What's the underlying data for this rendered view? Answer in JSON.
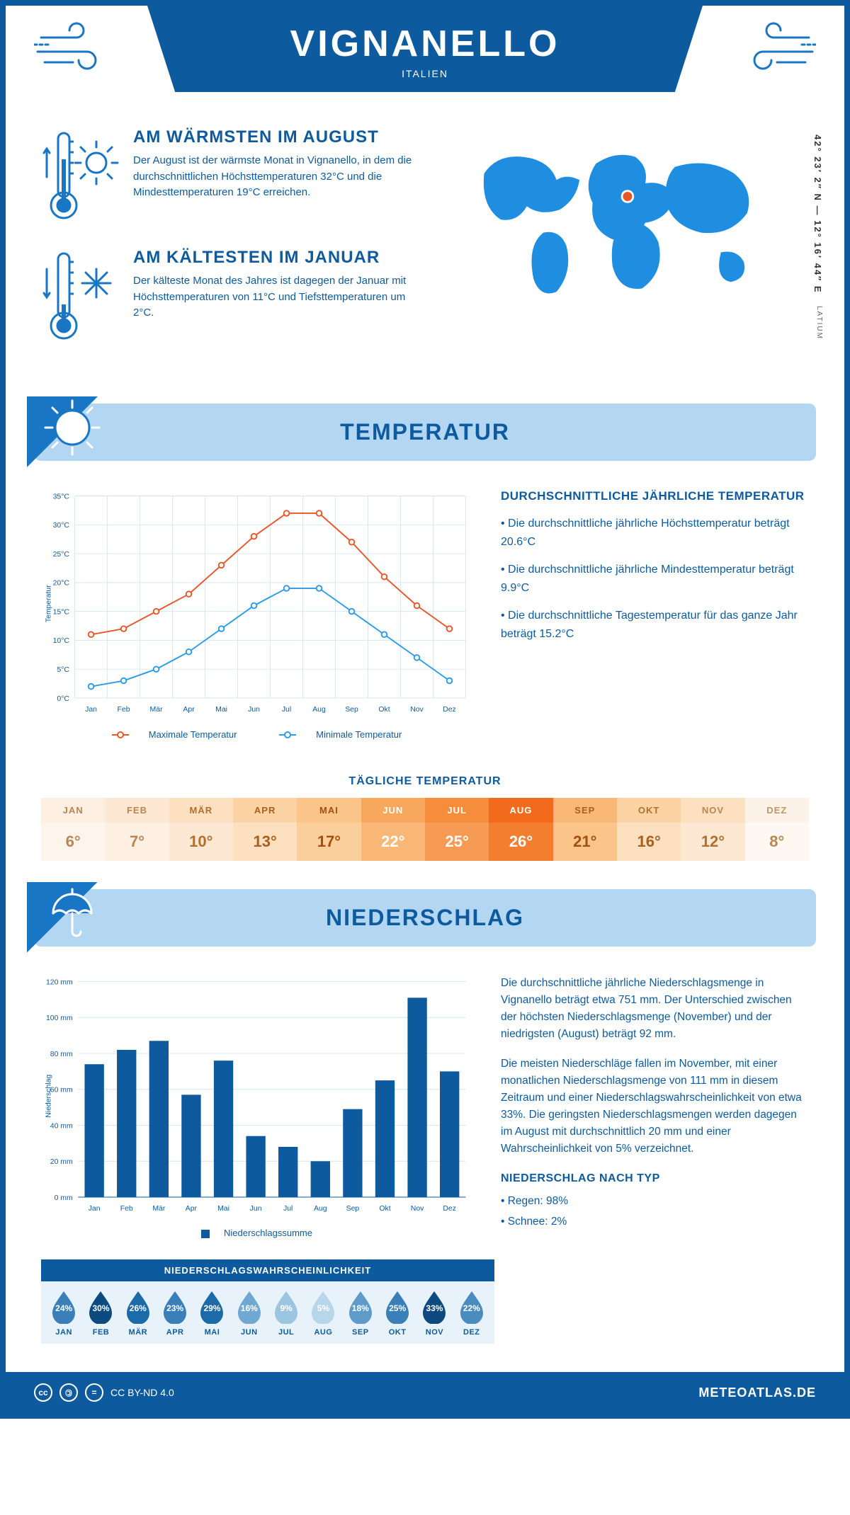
{
  "header": {
    "title": "VIGNANELLO",
    "subtitle": "ITALIEN"
  },
  "location": {
    "coords": "42° 23′ 2″ N — 12° 16′ 44″ E",
    "region": "LATIUM",
    "marker_color": "#e8562a",
    "continent_color": "#1f8de0"
  },
  "facts": {
    "warm": {
      "title": "AM WÄRMSTEN IM AUGUST",
      "body": "Der August ist der wärmste Monat in Vignanello, in dem die durchschnittlichen Höchsttemperaturen 32°C und die Mindesttemperaturen 19°C erreichen."
    },
    "cold": {
      "title": "AM KÄLTESTEN IM JANUAR",
      "body": "Der kälteste Monat des Jahres ist dagegen der Januar mit Höchsttemperaturen von 11°C und Tiefsttemperaturen um 2°C."
    }
  },
  "temp_section": {
    "title": "TEMPERATUR",
    "chart": {
      "type": "line",
      "categories": [
        "Jan",
        "Feb",
        "Mär",
        "Apr",
        "Mai",
        "Jun",
        "Jul",
        "Aug",
        "Sep",
        "Okt",
        "Nov",
        "Dez"
      ],
      "series": [
        {
          "name": "Maximale Temperatur",
          "color": "#e8562a",
          "values": [
            11,
            12,
            15,
            18,
            23,
            28,
            32,
            32,
            27,
            21,
            16,
            12
          ]
        },
        {
          "name": "Minimale Temperatur",
          "color": "#2b9be8",
          "values": [
            2,
            3,
            5,
            8,
            12,
            16,
            19,
            19,
            15,
            11,
            7,
            3
          ]
        }
      ],
      "ylabel": "Temperatur",
      "ylim": [
        0,
        35
      ],
      "ytick_step": 5,
      "grid_color": "#d4e6f5",
      "background_color": "#ffffff",
      "marker_fill": "#ffffff",
      "marker_radius": 4,
      "line_width": 2,
      "label_fontsize": 11
    },
    "legend_max": "Maximale Temperatur",
    "legend_min": "Minimale Temperatur",
    "text_title": "DURCHSCHNITTLICHE JÄHRLICHE TEMPERATUR",
    "bullets": [
      "• Die durchschnittliche jährliche Höchsttemperatur beträgt 20.6°C",
      "• Die durchschnittliche jährliche Mindesttemperatur beträgt 9.9°C",
      "• Die durchschnittliche Tagestemperatur für das ganze Jahr beträgt 15.2°C"
    ]
  },
  "daily": {
    "title": "TÄGLICHE TEMPERATUR",
    "months": [
      "JAN",
      "FEB",
      "MÄR",
      "APR",
      "MAI",
      "JUN",
      "JUL",
      "AUG",
      "SEP",
      "OKT",
      "NOV",
      "DEZ"
    ],
    "values": [
      "6°",
      "7°",
      "10°",
      "13°",
      "17°",
      "22°",
      "25°",
      "26°",
      "21°",
      "16°",
      "12°",
      "8°"
    ],
    "header_colors": [
      "#fdefe1",
      "#fde9d3",
      "#fde0bf",
      "#fcd3a3",
      "#fbc589",
      "#f7a85c",
      "#f58d3d",
      "#f26a1b",
      "#f9b878",
      "#fcd3a3",
      "#fde0bf",
      "#fdf2e8"
    ],
    "value_colors": [
      "#fdf5ec",
      "#fdefe1",
      "#fde9d3",
      "#fde0bf",
      "#fbcf9c",
      "#f9b878",
      "#f79a53",
      "#f47e30",
      "#fbc589",
      "#fde0bf",
      "#fde9d3",
      "#fef8f2"
    ],
    "header_text_colors": [
      "#b88650",
      "#b88650",
      "#b07030",
      "#a86020",
      "#a05010",
      "#ffffff",
      "#ffffff",
      "#ffffff",
      "#a86020",
      "#b07030",
      "#b88650",
      "#c09668"
    ],
    "value_text_colors": [
      "#b88650",
      "#b88650",
      "#b07030",
      "#a86020",
      "#a05010",
      "#ffffff",
      "#ffffff",
      "#ffffff",
      "#a05010",
      "#a86020",
      "#b07030",
      "#b88650"
    ]
  },
  "precip_section": {
    "title": "NIEDERSCHLAG",
    "chart": {
      "type": "bar",
      "categories": [
        "Jan",
        "Feb",
        "Mär",
        "Apr",
        "Mai",
        "Jun",
        "Jul",
        "Aug",
        "Sep",
        "Okt",
        "Nov",
        "Dez"
      ],
      "values": [
        74,
        82,
        87,
        57,
        76,
        34,
        28,
        20,
        49,
        65,
        111,
        70
      ],
      "bar_color": "#0d5a9e",
      "ylabel": "Niederschlag",
      "ylim": [
        0,
        120
      ],
      "ytick_step": 20,
      "grid_color": "#d4e6f5",
      "background_color": "#ffffff",
      "bar_width": 0.6,
      "legend": "Niederschlagssumme",
      "label_fontsize": 11
    },
    "text": [
      "Die durchschnittliche jährliche Niederschlagsmenge in Vignanello beträgt etwa 751 mm. Der Unterschied zwischen der höchsten Niederschlagsmenge (November) und der niedrigsten (August) beträgt 92 mm.",
      "Die meisten Niederschläge fallen im November, mit einer monatlichen Niederschlagsmenge von 111 mm in diesem Zeitraum und einer Niederschlagswahrscheinlichkeit von etwa 33%. Die geringsten Niederschlagsmengen werden dagegen im August mit durchschnittlich 20 mm und einer Wahrscheinlichkeit von 5% verzeichnet."
    ],
    "type_title": "NIEDERSCHLAG NACH TYP",
    "type_bullets": [
      "• Regen: 98%",
      "• Schnee: 2%"
    ]
  },
  "probability": {
    "title": "NIEDERSCHLAGSWAHRSCHEINLICHKEIT",
    "months": [
      "JAN",
      "FEB",
      "MÄR",
      "APR",
      "MAI",
      "JUN",
      "JUL",
      "AUG",
      "SEP",
      "OKT",
      "NOV",
      "DEZ"
    ],
    "values": [
      "24%",
      "30%",
      "26%",
      "23%",
      "29%",
      "16%",
      "9%",
      "5%",
      "18%",
      "25%",
      "33%",
      "22%"
    ],
    "colors": [
      "#3a7fb8",
      "#0d4a80",
      "#1d6aa8",
      "#3a7fb8",
      "#1d6aa8",
      "#6fa8d0",
      "#9cc5e0",
      "#b8d6ea",
      "#5f9bc8",
      "#3a7fb8",
      "#0d4a80",
      "#4a8cc0"
    ]
  },
  "footer": {
    "license": "CC BY-ND 4.0",
    "site": "METEOATLAS.DE"
  },
  "colors": {
    "primary": "#0d5a9e",
    "light_band": "#b3d6f2"
  }
}
